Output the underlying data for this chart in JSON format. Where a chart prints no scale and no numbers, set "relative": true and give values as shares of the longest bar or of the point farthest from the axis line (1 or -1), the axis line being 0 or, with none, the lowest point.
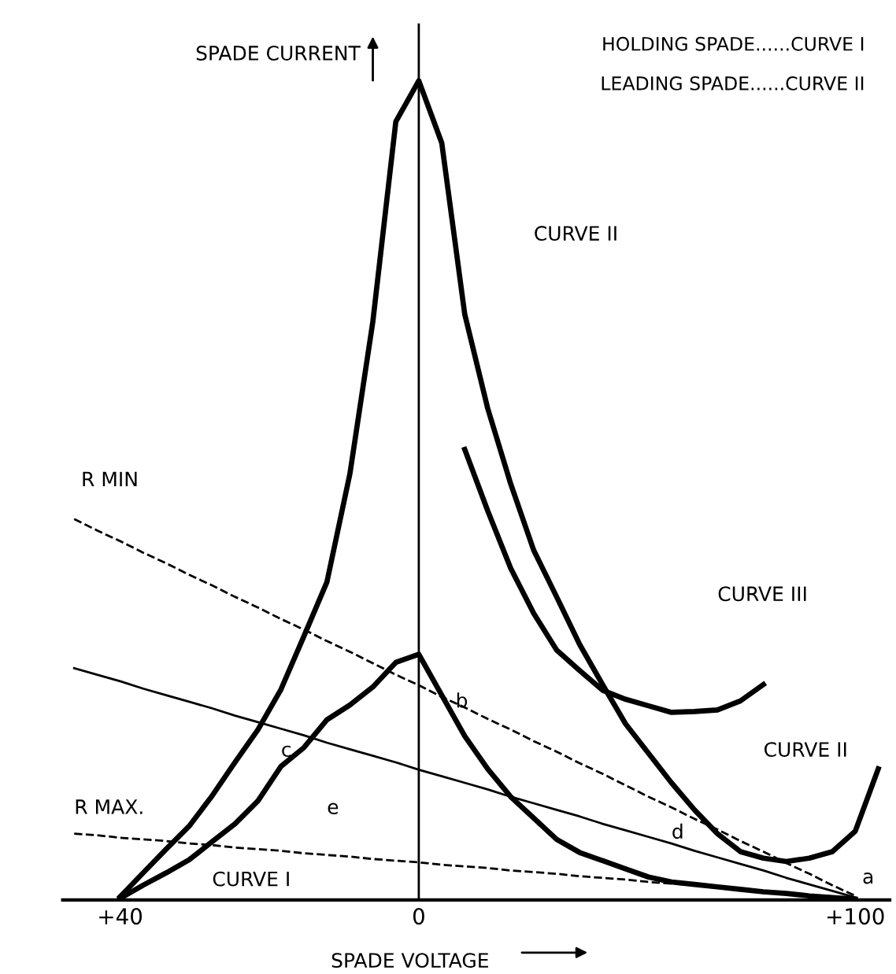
{
  "chart_data": {
    "type": "line",
    "relative": true,
    "xlabel": "SPADE VOLTAGE",
    "ylabel": "SPADE CURRENT",
    "categories": [
      null,
      null,
      "+40",
      null,
      null,
      null,
      null,
      null,
      null,
      null,
      null,
      null,
      null,
      null,
      null,
      "0",
      null,
      null,
      null,
      null,
      null,
      null,
      null,
      null,
      null,
      null,
      null,
      null,
      null,
      null,
      null,
      null,
      null,
      null,
      "+100",
      null
    ],
    "tick_labels": "x",
    "grid": false,
    "marker": "none",
    "ref_lines": [
      {
        "axis": "x",
        "value": "0",
        "color": "#000000",
        "line_style": "solid"
      }
    ],
    "series": [
      {
        "color": "#000000",
        "line_style": "solid",
        "values": [
          null,
          null,
          0.004,
          0.033,
          0.062,
          0.09,
          0.127,
          0.168,
          0.208,
          0.257,
          0.322,
          0.388,
          0.52,
          0.706,
          0.95,
          1.0,
          0.924,
          0.715,
          0.6,
          0.508,
          0.427,
          0.37,
          0.312,
          0.263,
          0.215,
          0.179,
          0.143,
          0.11,
          0.081,
          0.059,
          0.051,
          0.047,
          0.051,
          0.059,
          0.084,
          0.16
        ]
      },
      {
        "color": "#000000",
        "line_style": "solid",
        "values": [
          null,
          null,
          0.002,
          0.018,
          0.033,
          0.049,
          0.071,
          0.093,
          0.121,
          0.163,
          0.186,
          0.22,
          0.238,
          0.26,
          0.29,
          0.3,
          0.25,
          0.2,
          0.16,
          0.126,
          0.1,
          0.074,
          0.058,
          0.048,
          0.038,
          0.028,
          0.022,
          0.019,
          0.016,
          0.013,
          0.01,
          0.008,
          0.005,
          0.003,
          0.001,
          null
        ]
      },
      {
        "color": "#000000",
        "line_style": "solid",
        "values": [
          null,
          null,
          null,
          null,
          null,
          null,
          null,
          null,
          null,
          null,
          null,
          null,
          null,
          null,
          null,
          null,
          null,
          0.55,
          0.475,
          0.405,
          0.35,
          0.305,
          0.28,
          0.256,
          0.245,
          0.237,
          0.229,
          0.23,
          0.232,
          0.243,
          0.263,
          null,
          null,
          null,
          null,
          null
        ]
      },
      {
        "color": "#000000",
        "line_style": "dashed",
        "values": [
          0.465,
          0.451,
          0.438,
          0.424,
          0.411,
          0.397,
          0.384,
          0.37,
          0.357,
          0.343,
          0.33,
          0.316,
          0.303,
          0.289,
          0.275,
          0.262,
          0.248,
          0.235,
          0.221,
          0.208,
          0.194,
          0.181,
          0.167,
          0.154,
          0.14,
          0.126,
          0.113,
          0.099,
          0.086,
          0.072,
          0.059,
          0.045,
          0.032,
          0.018,
          0.005,
          null
        ]
      },
      {
        "color": "#000000",
        "line_style": "solid",
        "values": [
          0.283,
          0.275,
          0.267,
          0.258,
          0.25,
          0.242,
          0.234,
          0.225,
          0.217,
          0.209,
          0.201,
          0.192,
          0.184,
          0.176,
          0.168,
          0.159,
          0.151,
          0.143,
          0.135,
          0.126,
          0.118,
          0.11,
          0.102,
          0.093,
          0.085,
          0.077,
          0.069,
          0.06,
          0.052,
          0.044,
          0.036,
          0.027,
          0.019,
          0.011,
          0.003,
          null
        ]
      },
      {
        "color": "#000000",
        "line_style": "dashed",
        "values": [
          0.081,
          0.079,
          0.076,
          0.074,
          0.072,
          0.069,
          0.067,
          0.064,
          0.062,
          0.06,
          0.057,
          0.055,
          0.053,
          0.05,
          0.048,
          0.046,
          0.043,
          0.041,
          0.039,
          0.036,
          0.034,
          0.032,
          0.029,
          0.027,
          0.025,
          0.022,
          0.02,
          0.018,
          0.015,
          0.013,
          0.011,
          0.008,
          0.006,
          0.004,
          0.001,
          null
        ]
      }
    ],
    "annotations": [
      "HOLDING SPADE......CURVE I",
      "LEADING SPADE......CURVE II",
      "CURVE I",
      "CURVE II",
      "CURVE III",
      "CURVE II",
      "R MIN",
      "R MAX.",
      "a",
      "b",
      "c",
      "d",
      "e"
    ]
  }
}
